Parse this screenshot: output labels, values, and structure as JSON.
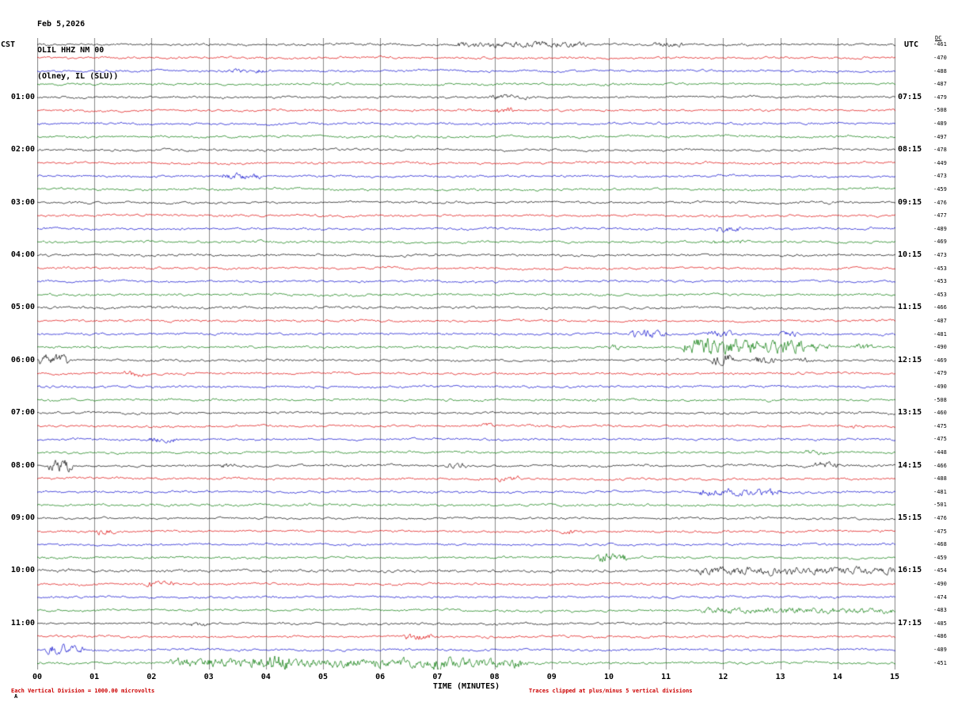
{
  "header": {
    "date": "Feb 5,2026",
    "station": "OLIL HHZ NM 00",
    "location": "(Olney, IL (SLU))"
  },
  "left_axis": {
    "title": "CST",
    "ticks": [
      "01:00",
      "02:00",
      "03:00",
      "04:00",
      "05:00",
      "06:00",
      "07:00",
      "08:00",
      "09:00",
      "10:00",
      "11:00"
    ]
  },
  "right_axis": {
    "title": "UTC",
    "dc_header": "DC",
    "ticks": [
      "07:15",
      "08:15",
      "09:15",
      "10:15",
      "11:15",
      "12:15",
      "13:15",
      "14:15",
      "15:15",
      "16:15",
      "17:15"
    ]
  },
  "x_axis": {
    "label": "TIME (MINUTES)",
    "ticks": [
      "00",
      "01",
      "02",
      "03",
      "04",
      "05",
      "06",
      "07",
      "08",
      "09",
      "10",
      "11",
      "12",
      "13",
      "14",
      "15"
    ]
  },
  "footer": {
    "left_note": "Each Vertical Division = 1000.00 microvolts",
    "right_note": "Traces clipped at plus/minus 5 vertical divisions",
    "corner_mark": "A"
  },
  "chart_data": {
    "type": "line",
    "title": "OLIL HHZ NM 00 (Olney, IL (SLU)) helicorder, Feb 5,2026",
    "xlabel": "TIME (MINUTES)",
    "xlim": [
      0,
      15
    ],
    "minutes_per_row": 15,
    "num_rows": 48,
    "grid": true,
    "grid_color": "#888888",
    "trace_colors_cycle": [
      "#000000",
      "#dd0000",
      "#0000cc",
      "#007700"
    ],
    "hour_label_row_indices": [
      4,
      8,
      12,
      16,
      20,
      24,
      28,
      32,
      36,
      40,
      44
    ],
    "rows": [
      {
        "dc": "-461",
        "events": [
          [
            7.3,
            9.6,
            3.0
          ],
          [
            10.7,
            11.3,
            2.6
          ]
        ]
      },
      {
        "dc": "-470"
      },
      {
        "dc": "-488",
        "events": [
          [
            3.3,
            4.0,
            2.2
          ]
        ]
      },
      {
        "dc": "-487"
      },
      {
        "dc": "-479",
        "events": [
          [
            7.9,
            8.6,
            2.4
          ]
        ]
      },
      {
        "dc": "-508",
        "events": [
          [
            8.0,
            8.35,
            3.2
          ]
        ]
      },
      {
        "dc": "-489"
      },
      {
        "dc": "-497"
      },
      {
        "dc": "-478"
      },
      {
        "dc": "-449"
      },
      {
        "dc": "-473",
        "events": [
          [
            3.2,
            3.9,
            3.0
          ]
        ]
      },
      {
        "dc": "-459"
      },
      {
        "dc": "-476"
      },
      {
        "dc": "-477"
      },
      {
        "dc": "-489",
        "events": [
          [
            11.85,
            12.3,
            2.8
          ]
        ]
      },
      {
        "dc": "-469",
        "events": [
          [
            11.8,
            12.4,
            2.2
          ]
        ]
      },
      {
        "dc": "-473"
      },
      {
        "dc": "-453"
      },
      {
        "dc": "-453"
      },
      {
        "dc": "-453"
      },
      {
        "dc": "-466",
        "base": 1.15
      },
      {
        "dc": "-487"
      },
      {
        "dc": "-481",
        "events": [
          [
            10.35,
            11.0,
            4.2
          ],
          [
            11.7,
            12.15,
            3.2
          ],
          [
            12.95,
            13.3,
            2.6
          ]
        ]
      },
      {
        "dc": "-490",
        "events": [
          [
            10.0,
            10.25,
            2.6
          ],
          [
            11.3,
            12.6,
            8.5
          ],
          [
            12.7,
            13.4,
            6.5
          ],
          [
            13.5,
            13.85,
            4.5
          ],
          [
            14.3,
            14.6,
            3.2
          ]
        ]
      },
      {
        "dc": "-469",
        "events": [
          [
            0.0,
            0.55,
            5.5
          ],
          [
            11.8,
            12.15,
            6.5
          ],
          [
            12.55,
            12.9,
            4.5
          ],
          [
            13.3,
            13.55,
            2.8
          ]
        ]
      },
      {
        "dc": "-479",
        "events": [
          [
            1.5,
            1.85,
            3.0
          ]
        ]
      },
      {
        "dc": "-490"
      },
      {
        "dc": "-508"
      },
      {
        "dc": "-460"
      },
      {
        "dc": "-475",
        "events": [
          [
            7.6,
            8.0,
            2.4
          ],
          [
            14.2,
            14.5,
            2.2
          ]
        ]
      },
      {
        "dc": "-475",
        "events": [
          [
            1.9,
            2.45,
            2.6
          ]
        ]
      },
      {
        "dc": "-448",
        "events": [
          [
            13.4,
            13.8,
            2.4
          ]
        ]
      },
      {
        "dc": "-466",
        "events": [
          [
            0.2,
            0.6,
            6.0
          ],
          [
            3.2,
            3.5,
            2.4
          ],
          [
            7.15,
            7.5,
            3.0
          ],
          [
            13.6,
            14.05,
            3.4
          ]
        ]
      },
      {
        "dc": "-488",
        "events": [
          [
            8.0,
            8.45,
            2.6
          ]
        ]
      },
      {
        "dc": "-481",
        "events": [
          [
            11.55,
            13.0,
            3.8
          ]
        ]
      },
      {
        "dc": "-501"
      },
      {
        "dc": "-476"
      },
      {
        "dc": "-475",
        "events": [
          [
            1.0,
            1.35,
            2.8
          ],
          [
            9.15,
            9.45,
            2.4
          ]
        ]
      },
      {
        "dc": "-468"
      },
      {
        "dc": "-459",
        "events": [
          [
            9.75,
            10.3,
            4.5
          ]
        ]
      },
      {
        "dc": "-454",
        "base": 1.25,
        "events": [
          [
            11.5,
            15.0,
            3.8
          ]
        ]
      },
      {
        "dc": "-490",
        "events": [
          [
            1.85,
            2.4,
            3.4
          ]
        ]
      },
      {
        "dc": "-474"
      },
      {
        "dc": "-483",
        "events": [
          [
            11.6,
            15.0,
            3.0
          ]
        ]
      },
      {
        "dc": "-485",
        "events": [
          [
            2.65,
            3.0,
            2.4
          ]
        ]
      },
      {
        "dc": "-486",
        "events": [
          [
            6.4,
            6.9,
            3.2
          ]
        ]
      },
      {
        "dc": "-489",
        "events": [
          [
            0.15,
            0.8,
            5.0
          ]
        ]
      },
      {
        "dc": "-451",
        "base": 1.1,
        "events": [
          [
            2.3,
            8.6,
            4.5
          ],
          [
            3.95,
            4.45,
            8.5
          ],
          [
            6.8,
            7.3,
            6.0
          ]
        ]
      }
    ]
  }
}
